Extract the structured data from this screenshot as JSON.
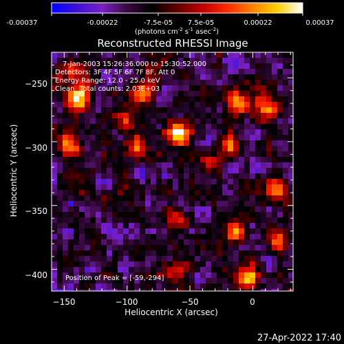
{
  "colorbar": {
    "tick_labels": [
      "-0.00037",
      "-0.00022",
      "-7.5e-05",
      "7.5e-05",
      "0.00022",
      "0.00037"
    ],
    "range": [
      -0.00037,
      0.00037
    ],
    "unit_prefix": "(photons cm",
    "unit_sup1": "-2",
    "unit_mid1": " s",
    "unit_sup2": "-1",
    "unit_mid2": " asec",
    "unit_sup3": "-2",
    "unit_suffix": ")",
    "colormap_stops": [
      "#0000ff",
      "#3a10d8",
      "#7a20c8",
      "#3a0a40",
      "#000000",
      "#600000",
      "#c00000",
      "#ff2a00",
      "#ff8000",
      "#ffd000",
      "#ffffff"
    ]
  },
  "chart_data": {
    "type": "heatmap",
    "title": "Reconstructed RHESSI Image",
    "xlabel": "Heliocentric X (arcsec)",
    "ylabel": "Heliocentric Y (arcsec)",
    "xlim": [
      -160,
      32
    ],
    "ylim": [
      -417,
      -230
    ],
    "xticks": [
      -150,
      -100,
      -50,
      0
    ],
    "yticks": [
      -250,
      -300,
      -350,
      -400
    ],
    "xtick_labels": [
      "−150",
      "−100",
      "−50",
      "0"
    ],
    "ytick_labels": [
      "−250",
      "−300",
      "−350",
      "−400"
    ],
    "peak_value": 0.00037,
    "bright_sources": [
      {
        "x": -139,
        "y": -266,
        "rel_intensity": 0.9
      },
      {
        "x": -87,
        "y": -262,
        "rel_intensity": 0.75
      },
      {
        "x": -59,
        "y": -294,
        "rel_intensity": 1.0
      },
      {
        "x": -11,
        "y": -268,
        "rel_intensity": 0.85
      },
      {
        "x": 12,
        "y": -276,
        "rel_intensity": 0.7
      },
      {
        "x": -18,
        "y": -304,
        "rel_intensity": 0.85
      },
      {
        "x": -146,
        "y": -302,
        "rel_intensity": 0.65
      },
      {
        "x": -90,
        "y": -305,
        "rel_intensity": 0.6
      },
      {
        "x": 19,
        "y": -338,
        "rel_intensity": 0.7
      },
      {
        "x": -36,
        "y": -318,
        "rel_intensity": 0.55
      },
      {
        "x": -14,
        "y": -370,
        "rel_intensity": 0.75
      },
      {
        "x": -4,
        "y": -406,
        "rel_intensity": 0.95
      },
      {
        "x": 20,
        "y": -375,
        "rel_intensity": 0.6
      },
      {
        "x": -59,
        "y": -362,
        "rel_intensity": 0.5
      },
      {
        "x": -61,
        "y": -402,
        "rel_intensity": 0.55
      },
      {
        "x": -141,
        "y": -244,
        "rel_intensity": 0.5
      },
      {
        "x": -104,
        "y": -282,
        "rel_intensity": 0.45
      }
    ]
  },
  "annotations": {
    "time_range": "7-Jan-2003 15:26:36.000 to 15:30:52.000",
    "detectors": "Detectors: 3F 4F 5F 6F 7F 8F, Att 0",
    "energy_range": "Energy Range: 12.0 - 25.0 keV",
    "method_label": "Clean",
    "total_counts": "Total counts: 2.03E+03",
    "peak_position": "Position of Peak = [-59,-294]"
  },
  "footer": {
    "timestamp": "27-Apr-2022 17:40"
  }
}
